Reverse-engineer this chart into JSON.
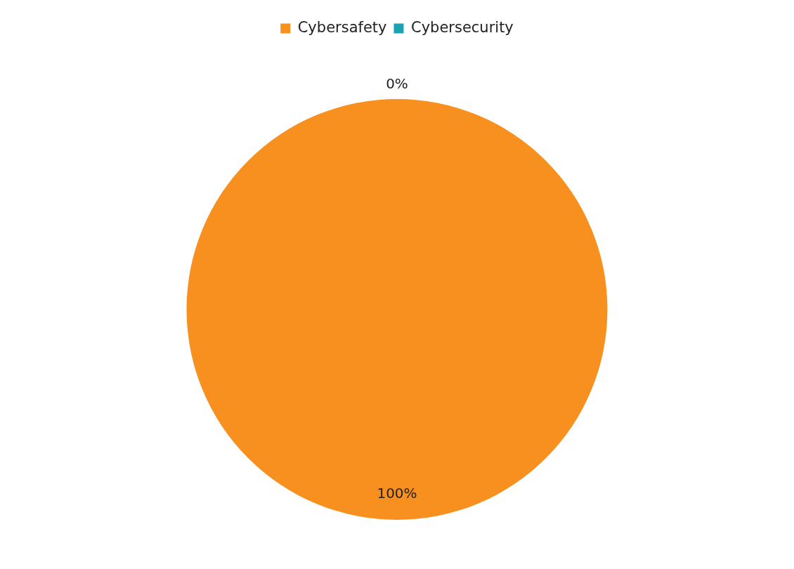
{
  "chart_data": {
    "type": "pie",
    "categories": [
      "Cybersafety",
      "Cybersecurity"
    ],
    "values": [
      100,
      0
    ],
    "colors": [
      "#f7901e",
      "#1ba3b3"
    ],
    "value_labels": [
      "100%",
      "0%"
    ],
    "legend": "top"
  }
}
